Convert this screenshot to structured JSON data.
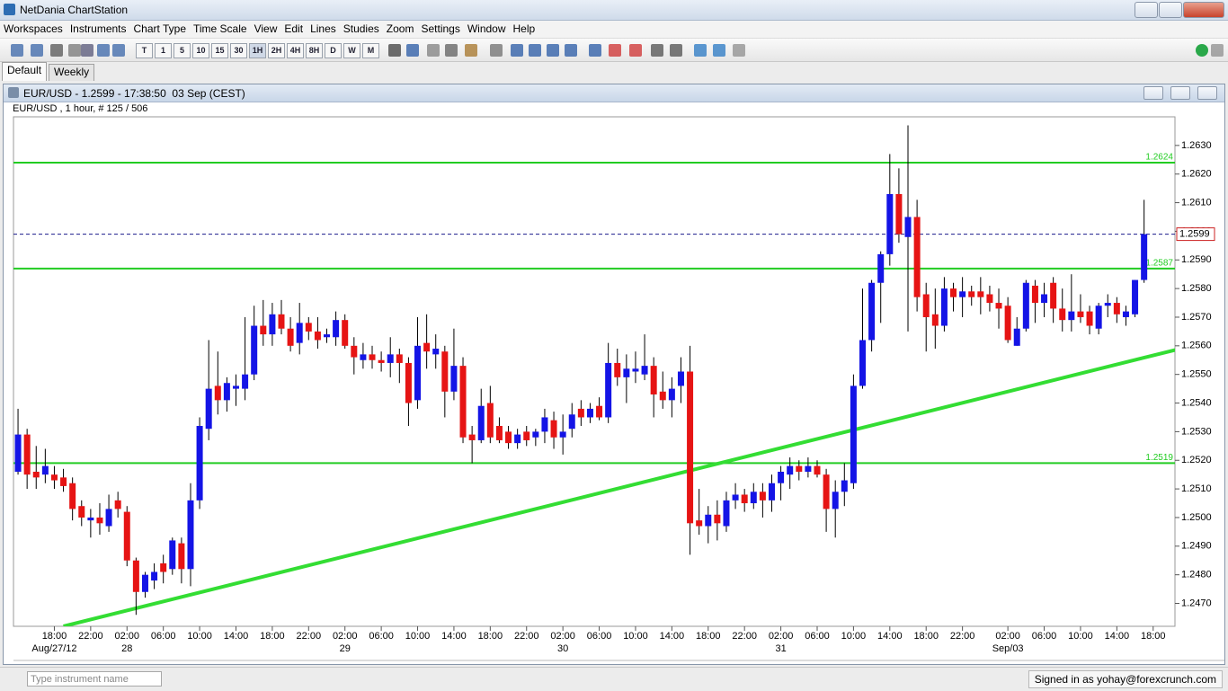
{
  "window": {
    "title": "NetDania ChartStation"
  },
  "menu": [
    "Workspaces",
    "Instruments",
    "Chart Type",
    "Time Scale",
    "View",
    "Edit",
    "Lines",
    "Studies",
    "Zoom",
    "Settings",
    "Window",
    "Help"
  ],
  "toolbar": {
    "timeframes": [
      "T",
      "1",
      "5",
      "10",
      "15",
      "30",
      "1H",
      "2H",
      "4H",
      "8H",
      "D",
      "W",
      "M"
    ]
  },
  "tabs": [
    "Default",
    "Weekly"
  ],
  "chart_window": {
    "title": "EUR/USD - 1.2599 - 17:38:50  03 Sep (CEST)",
    "subtitle": "EUR/USD , 1 hour, # 125 / 506"
  },
  "chart_data": {
    "type": "candlestick",
    "up_color": "#1414e6",
    "down_color": "#e61414",
    "wick_color": "#000000",
    "xlim": [
      -0.5,
      127.4
    ],
    "ylim": [
      1.2462,
      1.264
    ],
    "grid": false,
    "yticks": [
      {
        "value": 1.247,
        "label": "1.2470"
      },
      {
        "value": 1.248,
        "label": "1.2480"
      },
      {
        "value": 1.249,
        "label": "1.2490"
      },
      {
        "value": 1.25,
        "label": "1.2500"
      },
      {
        "value": 1.251,
        "label": "1.2510"
      },
      {
        "value": 1.252,
        "label": "1.2520"
      },
      {
        "value": 1.253,
        "label": "1.2530"
      },
      {
        "value": 1.254,
        "label": "1.2540"
      },
      {
        "value": 1.255,
        "label": "1.2550"
      },
      {
        "value": 1.256,
        "label": "1.2560"
      },
      {
        "value": 1.257,
        "label": "1.2570"
      },
      {
        "value": 1.258,
        "label": "1.2580"
      },
      {
        "value": 1.259,
        "label": "1.2590"
      },
      {
        "value": 1.26,
        "label": "1.2600"
      },
      {
        "value": 1.261,
        "label": "1.2610"
      },
      {
        "value": 1.262,
        "label": "1.2620"
      },
      {
        "value": 1.263,
        "label": "1.2630"
      }
    ],
    "xticks": [
      {
        "value": 4,
        "label": "18:00"
      },
      {
        "value": 8,
        "label": "22:00"
      },
      {
        "value": 12,
        "label": "02:00"
      },
      {
        "value": 16,
        "label": "06:00"
      },
      {
        "value": 20,
        "label": "10:00"
      },
      {
        "value": 24,
        "label": "14:00"
      },
      {
        "value": 28,
        "label": "18:00"
      },
      {
        "value": 32,
        "label": "22:00"
      },
      {
        "value": 36,
        "label": "02:00"
      },
      {
        "value": 40,
        "label": "06:00"
      },
      {
        "value": 44,
        "label": "10:00"
      },
      {
        "value": 48,
        "label": "14:00"
      },
      {
        "value": 52,
        "label": "18:00"
      },
      {
        "value": 56,
        "label": "22:00"
      },
      {
        "value": 60,
        "label": "02:00"
      },
      {
        "value": 64,
        "label": "06:00"
      },
      {
        "value": 68,
        "label": "10:00"
      },
      {
        "value": 72,
        "label": "14:00"
      },
      {
        "value": 76,
        "label": "18:00"
      },
      {
        "value": 80,
        "label": "22:00"
      },
      {
        "value": 84,
        "label": "02:00"
      },
      {
        "value": 88,
        "label": "06:00"
      },
      {
        "value": 92,
        "label": "10:00"
      },
      {
        "value": 96,
        "label": "14:00"
      },
      {
        "value": 100,
        "label": "18:00"
      },
      {
        "value": 104,
        "label": "22:00"
      },
      {
        "value": 109,
        "label": "02:00"
      },
      {
        "value": 113,
        "label": "06:00"
      },
      {
        "value": 117,
        "label": "10:00"
      },
      {
        "value": 121,
        "label": "14:00"
      },
      {
        "value": 125,
        "label": "18:00"
      }
    ],
    "date_ticks": [
      {
        "value": 4,
        "label": "Aug/27/12"
      },
      {
        "value": 12,
        "label": "28"
      },
      {
        "value": 36,
        "label": "29"
      },
      {
        "value": 60,
        "label": "30"
      },
      {
        "value": 84,
        "label": "31"
      },
      {
        "value": 109,
        "label": "Sep/03"
      }
    ],
    "levels": [
      {
        "value": 1.2624,
        "label": "1.2624"
      },
      {
        "value": 1.2587,
        "label": "1.2587"
      },
      {
        "value": 1.2519,
        "label": "1.2519"
      }
    ],
    "level_color": "#22cc22",
    "last": {
      "value": 1.2599,
      "label": "1.2599"
    },
    "last_color": "#1a1a8c",
    "trendline": {
      "x": [
        5,
        128
      ],
      "y": [
        1.2462,
        1.2559
      ],
      "color": "#33dd33"
    },
    "open": [
      1.2516,
      1.2529,
      1.2516,
      1.2515,
      1.2515,
      1.2514,
      1.2512,
      1.2504,
      1.2499,
      1.25,
      1.2497,
      1.2506,
      1.2502,
      1.2485,
      1.2474,
      1.2478,
      1.2484,
      1.2482,
      1.2491,
      1.2482,
      1.2506,
      1.2531,
      1.2546,
      1.2541,
      1.2545,
      1.2545,
      1.255,
      1.2567,
      1.2564,
      1.2571,
      1.2566,
      1.2561,
      1.2568,
      1.2565,
      1.2563,
      1.2563,
      1.2569,
      1.256,
      1.2555,
      1.2557,
      1.2555,
      1.2554,
      1.2557,
      1.2554,
      1.2541,
      1.2561,
      1.2557,
      1.2558,
      1.2544,
      1.2553,
      1.2529,
      1.2527,
      1.254,
      1.2532,
      1.253,
      1.2526,
      1.253,
      1.2528,
      1.253,
      1.2534,
      1.2528,
      1.2531,
      1.2538,
      1.2535,
      1.2539,
      1.2535,
      1.2554,
      1.2549,
      1.2551,
      1.255,
      1.2553,
      1.2544,
      1.2541,
      1.2546,
      1.2551,
      1.2499,
      1.2497,
      1.2501,
      1.2497,
      1.2506,
      1.2508,
      1.2505,
      1.2509,
      1.2506,
      1.2512,
      1.2515,
      1.2518,
      1.2516,
      1.2518,
      1.2515,
      1.2503,
      1.2509,
      1.2512,
      1.2546,
      1.2562,
      1.2582,
      1.2592,
      1.2613,
      1.2598,
      1.2605,
      1.2578,
      1.2571,
      1.2567,
      1.258,
      1.2577,
      1.2579,
      1.2579,
      1.2578,
      1.2575,
      1.2574,
      1.256,
      1.2566,
      1.2581,
      1.2575,
      1.2582,
      1.2573,
      1.2569,
      1.2572,
      1.2572,
      1.2566,
      1.2574,
      1.2575,
      1.257,
      1.2571,
      1.2583
    ],
    "high": [
      1.2538,
      1.2531,
      1.2525,
      1.2524,
      1.2518,
      1.2517,
      1.2514,
      1.2506,
      1.2503,
      1.2505,
      1.2508,
      1.2509,
      1.2504,
      1.2486,
      1.2481,
      1.2484,
      1.2487,
      1.2493,
      1.2493,
      1.2512,
      1.2535,
      1.2562,
      1.2558,
      1.2549,
      1.255,
      1.257,
      1.2574,
      1.2576,
      1.2575,
      1.2576,
      1.257,
      1.2575,
      1.257,
      1.257,
      1.2566,
      1.2572,
      1.2571,
      1.2563,
      1.2561,
      1.256,
      1.2558,
      1.2563,
      1.2559,
      1.2556,
      1.257,
      1.2571,
      1.2564,
      1.256,
      1.2566,
      1.2556,
      1.2532,
      1.2545,
      1.2546,
      1.2535,
      1.2532,
      1.2531,
      1.2532,
      1.2531,
      1.2538,
      1.2537,
      1.2536,
      1.254,
      1.2541,
      1.254,
      1.2542,
      1.2561,
      1.2559,
      1.2557,
      1.2558,
      1.2564,
      1.2556,
      1.2551,
      1.2549,
      1.2556,
      1.256,
      1.251,
      1.2504,
      1.2506,
      1.2509,
      1.2512,
      1.251,
      1.2512,
      1.2512,
      1.2515,
      1.2518,
      1.2521,
      1.252,
      1.2521,
      1.252,
      1.2517,
      1.2513,
      1.2519,
      1.255,
      1.258,
      1.2583,
      1.2593,
      1.2627,
      1.2622,
      1.2637,
      1.2611,
      1.2582,
      1.258,
      1.2584,
      1.2582,
      1.2584,
      1.2581,
      1.2584,
      1.2581,
      1.258,
      1.2577,
      1.257,
      1.2583,
      1.2583,
      1.2582,
      1.2584,
      1.258,
      1.2585,
      1.2578,
      1.2574,
      1.2575,
      1.2578,
      1.2577,
      1.2574,
      1.2583,
      1.2611
    ],
    "low": [
      1.2515,
      1.251,
      1.251,
      1.2512,
      1.251,
      1.2509,
      1.2499,
      1.2497,
      1.2493,
      1.2494,
      1.2495,
      1.25,
      1.2483,
      1.2466,
      1.2472,
      1.2475,
      1.2477,
      1.248,
      1.2477,
      1.2476,
      1.2503,
      1.2527,
      1.2536,
      1.2537,
      1.2539,
      1.2541,
      1.2548,
      1.256,
      1.256,
      1.2564,
      1.2558,
      1.2557,
      1.2562,
      1.2559,
      1.2561,
      1.256,
      1.2559,
      1.255,
      1.2552,
      1.2552,
      1.2551,
      1.2549,
      1.2547,
      1.2532,
      1.2538,
      1.2552,
      1.2552,
      1.2535,
      1.2541,
      1.2526,
      1.2519,
      1.2526,
      1.2526,
      1.2526,
      1.2524,
      1.2524,
      1.2525,
      1.2525,
      1.2526,
      1.2524,
      1.2522,
      1.2528,
      1.2532,
      1.2533,
      1.2534,
      1.2533,
      1.2546,
      1.254,
      1.2547,
      1.2548,
      1.2535,
      1.2538,
      1.2535,
      1.254,
      1.2487,
      1.2494,
      1.2491,
      1.2492,
      1.2495,
      1.2503,
      1.2502,
      1.2503,
      1.25,
      1.2502,
      1.2506,
      1.251,
      1.2513,
      1.2514,
      1.2514,
      1.2495,
      1.2493,
      1.2504,
      1.251,
      1.2545,
      1.2558,
      1.2568,
      1.2588,
      1.2596,
      1.2565,
      1.2572,
      1.2558,
      1.2559,
      1.2565,
      1.2572,
      1.257,
      1.2574,
      1.2571,
      1.2572,
      1.2566,
      1.2561,
      1.256,
      1.2565,
      1.2568,
      1.257,
      1.2568,
      1.2565,
      1.2565,
      1.2568,
      1.2564,
      1.2564,
      1.257,
      1.2568,
      1.2567,
      1.257,
      1.2582
    ],
    "close": [
      1.2529,
      1.2515,
      1.2514,
      1.2518,
      1.2513,
      1.2511,
      1.2503,
      1.25,
      1.25,
      1.2498,
      1.2503,
      1.2503,
      1.2485,
      1.2474,
      1.248,
      1.2481,
      1.2481,
      1.2492,
      1.2482,
      1.2506,
      1.2532,
      1.2545,
      1.2541,
      1.2547,
      1.2546,
      1.255,
      1.2567,
      1.2564,
      1.2571,
      1.2566,
      1.256,
      1.2568,
      1.2565,
      1.2562,
      1.2564,
      1.2569,
      1.256,
      1.2556,
      1.2557,
      1.2555,
      1.2554,
      1.2557,
      1.2554,
      1.254,
      1.256,
      1.2558,
      1.2559,
      1.2544,
      1.2553,
      1.2528,
      1.2527,
      1.2539,
      1.2528,
      1.2527,
      1.2526,
      1.2529,
      1.2527,
      1.253,
      1.2535,
      1.2528,
      1.253,
      1.2536,
      1.2535,
      1.2538,
      1.2535,
      1.2554,
      1.2549,
      1.2552,
      1.2552,
      1.2553,
      1.2543,
      1.2541,
      1.2545,
      1.2551,
      1.2498,
      1.2497,
      1.2501,
      1.2498,
      1.2506,
      1.2508,
      1.2505,
      1.2509,
      1.2506,
      1.2512,
      1.2516,
      1.2518,
      1.2516,
      1.2518,
      1.2515,
      1.2503,
      1.2509,
      1.2513,
      1.2546,
      1.2562,
      1.2582,
      1.2592,
      1.2613,
      1.2599,
      1.2605,
      1.2577,
      1.257,
      1.2567,
      1.258,
      1.2577,
      1.2579,
      1.2577,
      1.2577,
      1.2575,
      1.2573,
      1.2562,
      1.2566,
      1.2582,
      1.2575,
      1.2578,
      1.2573,
      1.2569,
      1.2572,
      1.257,
      1.2567,
      1.2574,
      1.2575,
      1.2571,
      1.2572,
      1.2583,
      1.2599
    ]
  },
  "footer": {
    "search_placeholder": "Type instrument name",
    "status": "Signed in as yohay@forexcrunch.com"
  }
}
